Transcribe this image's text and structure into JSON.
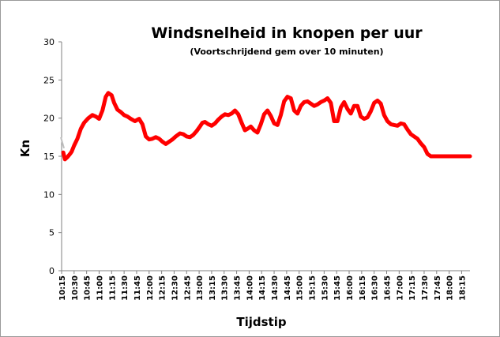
{
  "chart_data": {
    "type": "line",
    "title": "Windsnelheid in knopen per uur",
    "subtitle": "(Voortschrijdend gem over 10 minuten)",
    "ylabel": "Kn",
    "xlabel": "Tijdstip",
    "ylim": [
      0,
      30
    ],
    "yticks": [
      "0",
      "5",
      "10",
      "15",
      "20",
      "25",
      "30"
    ],
    "grid": false,
    "legend": "none",
    "x_range": [
      "10:15",
      "18:25"
    ],
    "xticks": [
      "10:15",
      "10:30",
      "10:45",
      "11:00",
      "11:15",
      "11:30",
      "11:45",
      "12:00",
      "12:15",
      "12:30",
      "12:45",
      "13:00",
      "13:15",
      "13:30",
      "13:45",
      "14:00",
      "14:15",
      "14:30",
      "14:45",
      "15:00",
      "15:15",
      "15:30",
      "15:45",
      "16:00",
      "16:15",
      "16:30",
      "16:45",
      "17:00",
      "17:15",
      "17:30",
      "17:45",
      "18:00",
      "18:15"
    ],
    "series": [
      {
        "color": "#ff0000",
        "x": [
          "10:17",
          "10:19",
          "10:22",
          "10:25",
          "10:27",
          "10:30",
          "10:34",
          "10:38",
          "10:42",
          "10:47",
          "10:52",
          "10:56",
          "11:00",
          "11:04",
          "11:08",
          "11:11",
          "11:15",
          "11:18",
          "11:22",
          "11:26",
          "11:30",
          "11:34",
          "11:38",
          "11:43",
          "11:48",
          "11:52",
          "11:56",
          "12:00",
          "12:04",
          "12:08",
          "12:12",
          "12:16",
          "12:20",
          "12:24",
          "12:28",
          "12:32",
          "12:37",
          "12:41",
          "12:45",
          "12:49",
          "12:53",
          "12:57",
          "13:01",
          "13:04",
          "13:07",
          "13:11",
          "13:15",
          "13:19",
          "13:23",
          "13:27",
          "13:31",
          "13:35",
          "13:39",
          "13:43",
          "13:47",
          "13:51",
          "13:55",
          "13:58",
          "14:02",
          "14:06",
          "14:10",
          "14:14",
          "14:18",
          "14:22",
          "14:26",
          "14:30",
          "14:34",
          "14:38",
          "14:42",
          "14:46",
          "14:50",
          "14:54",
          "14:58",
          "15:02",
          "15:06",
          "15:10",
          "15:14",
          "15:18",
          "15:22",
          "15:26",
          "15:30",
          "15:34",
          "15:38",
          "15:42",
          "15:46",
          "15:50",
          "15:54",
          "15:58",
          "16:02",
          "16:06",
          "16:10",
          "16:14",
          "16:18",
          "16:22",
          "16:26",
          "16:30",
          "16:34",
          "16:38",
          "16:42",
          "16:46",
          "16:50",
          "16:54",
          "16:58",
          "17:02",
          "17:06",
          "17:10",
          "17:14",
          "17:18",
          "17:22",
          "17:26",
          "17:30",
          "17:34",
          "17:38",
          "17:42",
          "17:46",
          "17:50",
          "17:54",
          "17:58",
          "18:02",
          "18:06",
          "18:10",
          "18:14",
          "18:18",
          "18:22",
          "18:25"
        ],
        "values": [
          15.5,
          14.6,
          14.9,
          15.3,
          15.6,
          16.4,
          17.3,
          18.6,
          19.4,
          20.0,
          20.4,
          20.2,
          19.9,
          21.0,
          22.8,
          23.3,
          23.0,
          22.0,
          21.1,
          20.8,
          20.4,
          20.2,
          19.9,
          19.6,
          19.9,
          19.2,
          17.6,
          17.2,
          17.3,
          17.5,
          17.3,
          16.9,
          16.6,
          16.9,
          17.2,
          17.6,
          18.0,
          17.9,
          17.6,
          17.5,
          17.8,
          18.3,
          18.9,
          19.4,
          19.5,
          19.2,
          19.0,
          19.3,
          19.8,
          20.2,
          20.5,
          20.4,
          20.6,
          21.0,
          20.5,
          19.4,
          18.4,
          18.6,
          18.9,
          18.4,
          18.1,
          19.2,
          20.5,
          21.0,
          20.3,
          19.3,
          19.1,
          20.4,
          22.2,
          22.8,
          22.6,
          21.0,
          20.6,
          21.6,
          22.1,
          22.2,
          21.9,
          21.6,
          21.8,
          22.1,
          22.3,
          22.6,
          22.0,
          19.6,
          19.6,
          21.4,
          22.1,
          21.2,
          20.6,
          21.6,
          21.6,
          20.2,
          19.9,
          20.1,
          20.9,
          22.0,
          22.3,
          21.9,
          20.4,
          19.6,
          19.2,
          19.1,
          19.0,
          19.3,
          19.2,
          18.5,
          17.9,
          17.6,
          17.3,
          16.7,
          16.2,
          15.3,
          15.0,
          15.0,
          15.0,
          15.0,
          15.0,
          15.0,
          15.0,
          15.0,
          15.0,
          15.0,
          15.0,
          15.0,
          15.0
        ]
      }
    ],
    "y_axis_start_value": 17.5
  }
}
